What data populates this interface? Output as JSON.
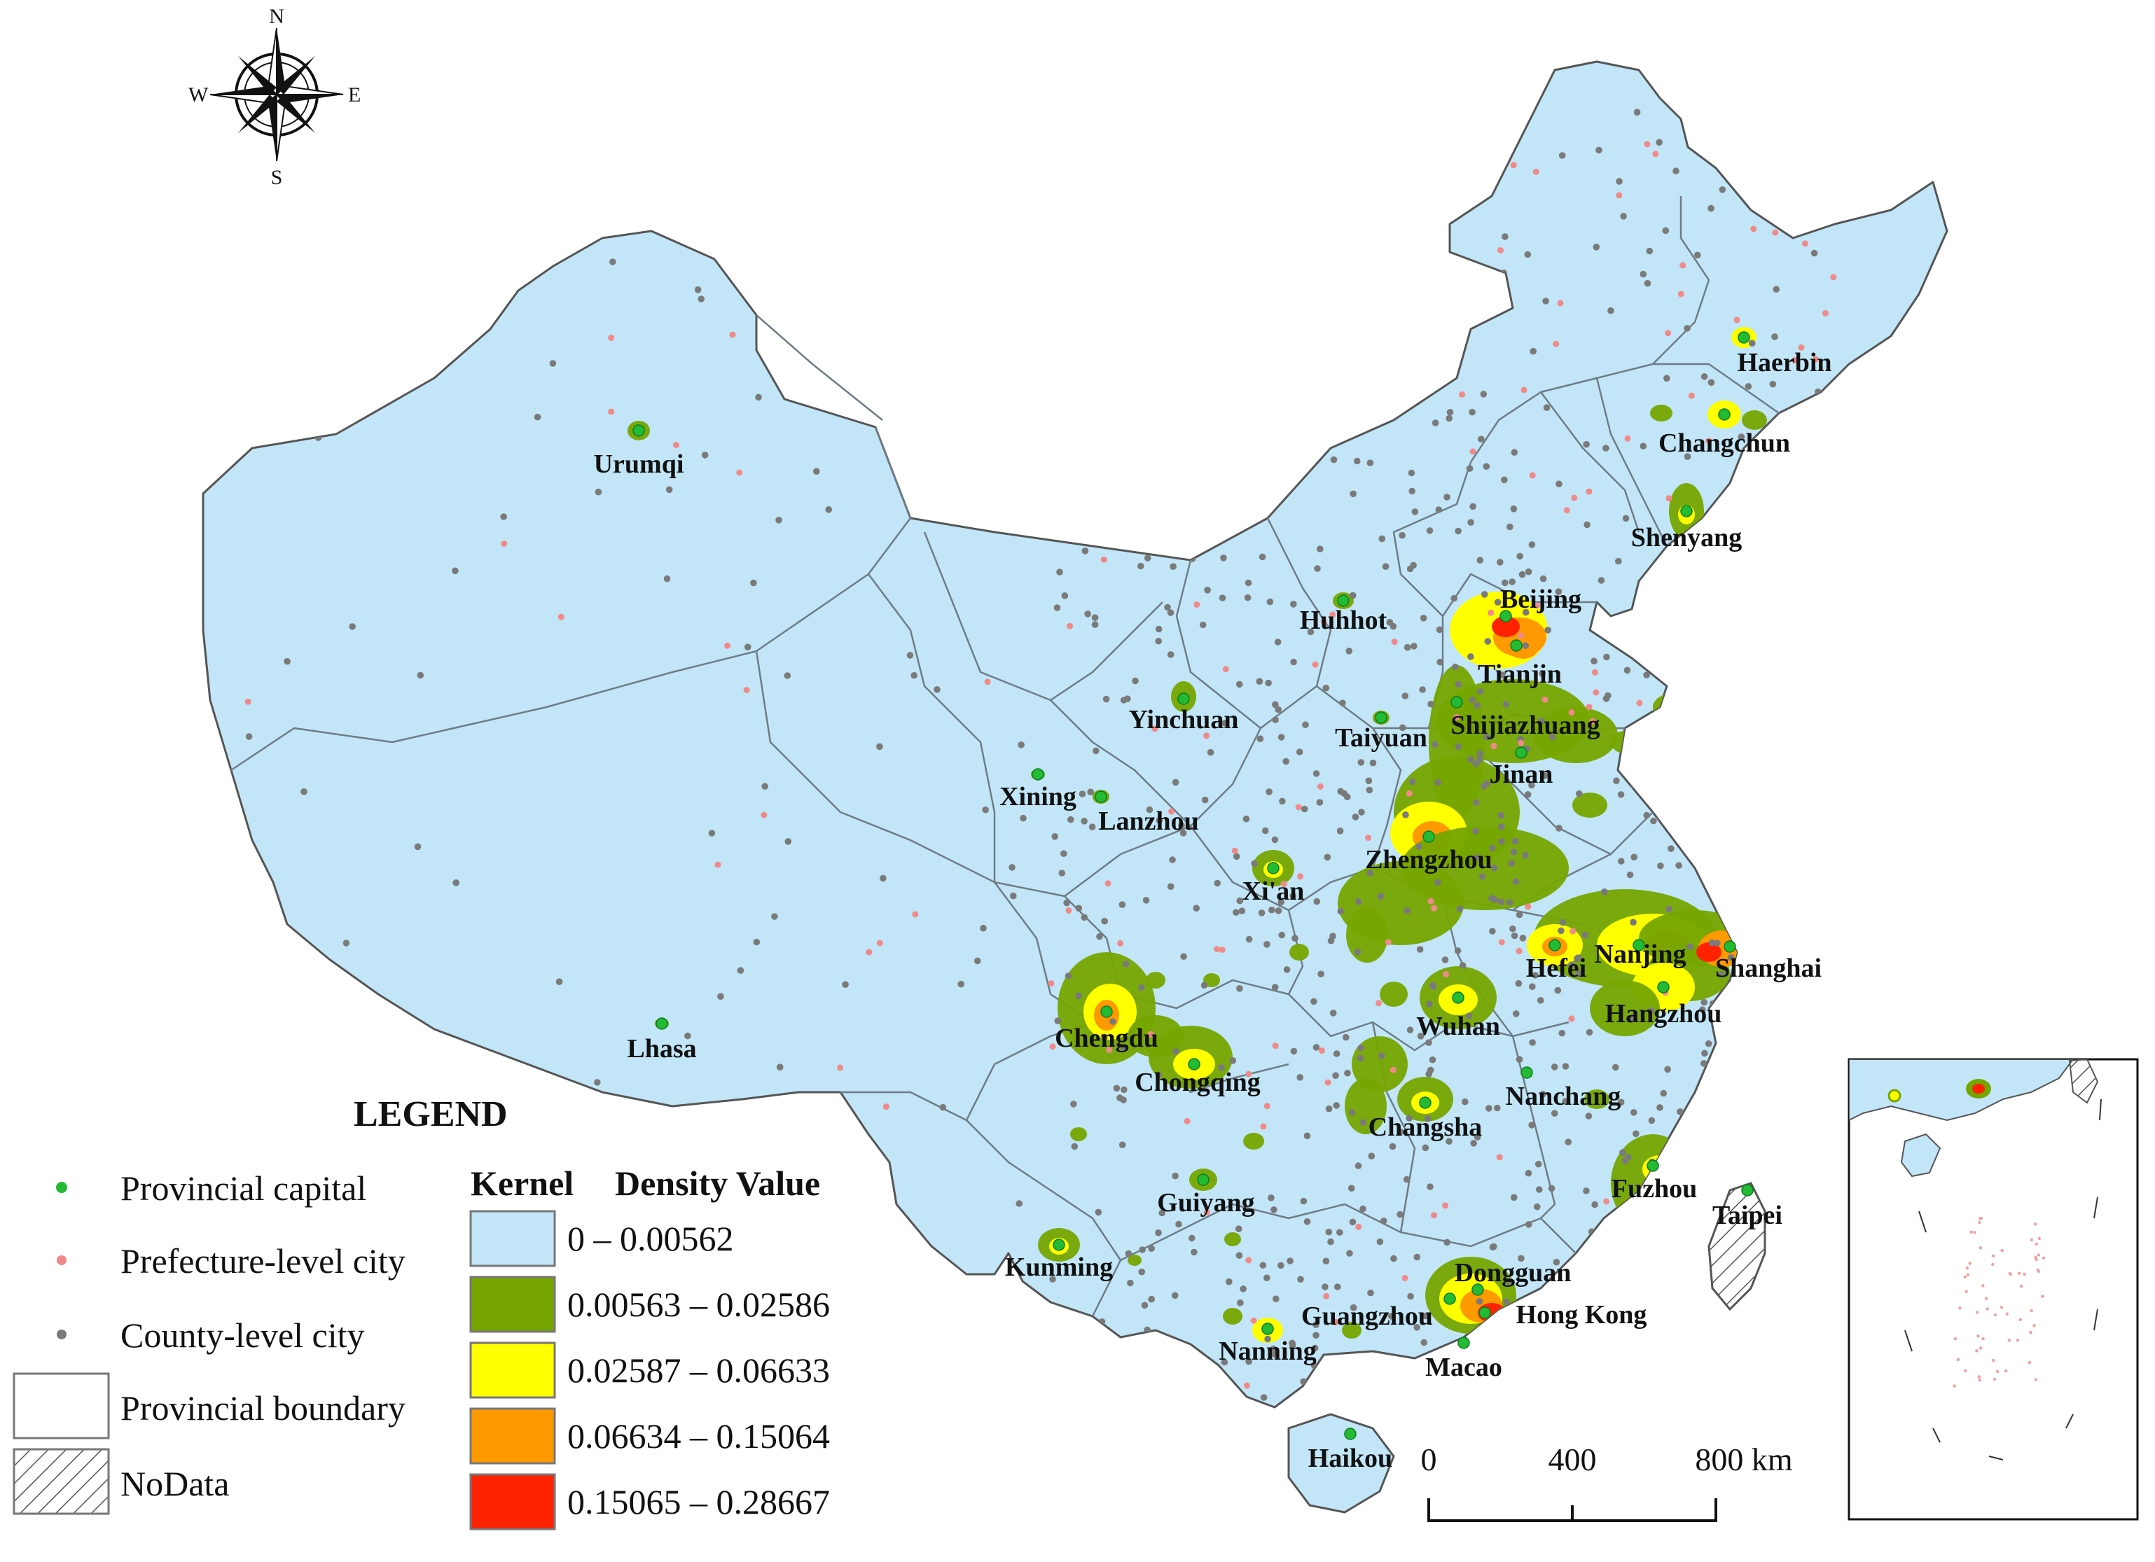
{
  "compass": {
    "north": "N",
    "south": "S",
    "east": "E",
    "west": "W"
  },
  "legend": {
    "title": "LEGEND",
    "symbols": [
      {
        "label": "Provincial capital",
        "color": "#22bb33"
      },
      {
        "label": "Prefecture-level city",
        "color": "#f08a8a"
      },
      {
        "label": "County-level city",
        "color": "#7a7a7a"
      },
      {
        "label": "Provincial boundary"
      },
      {
        "label": "NoData"
      }
    ],
    "kernel_title_1": "Kernel",
    "kernel_title_2": "Density Value",
    "classes": [
      {
        "range": "0 – 0.00562",
        "color": "#c2e6f8"
      },
      {
        "range": "0.00563 – 0.02586",
        "color": "#76a500"
      },
      {
        "range": "0.02587 – 0.06633",
        "color": "#ffff00"
      },
      {
        "range": "0.06634 – 0.15064",
        "color": "#ff9900"
      },
      {
        "range": "0.15065 – 0.28667",
        "color": "#ff2200"
      }
    ]
  },
  "scale_bar": {
    "labels": [
      "0",
      "400",
      "800 km"
    ]
  },
  "cities": [
    "Urumqi",
    "Lhasa",
    "Haerbin",
    "Changchun",
    "Shenyang",
    "Beijing",
    "Huhhot",
    "Tianjin",
    "Yinchuan",
    "Taiyuan",
    "Shijiazhuang",
    "Jinan",
    "Xining",
    "Lanzhou",
    "Zhengzhou",
    "Xi'an",
    "Nanjing",
    "Hefei",
    "Shanghai",
    "Hangzhou",
    "Chengdu",
    "Wuhan",
    "Chongqing",
    "Nanchang",
    "Changsha",
    "Fuzhou",
    "Taipei",
    "Guiyang",
    "Kunming",
    "Dongguan",
    "Guangzhou",
    "Hong Kong",
    "Nanning",
    "Macao",
    "Haikou"
  ]
}
